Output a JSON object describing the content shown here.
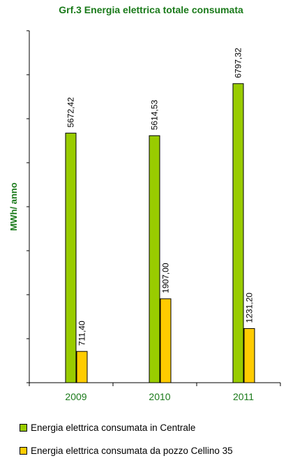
{
  "chart_data": {
    "type": "bar",
    "title": "Grf.3 Energia elettrica totale consumata",
    "ylabel": "MWh/ anno",
    "xlabel": "",
    "categories": [
      "2009",
      "2010",
      "2011"
    ],
    "ylim": [
      0,
      8000
    ],
    "y_ticks_labeled": false,
    "grid": false,
    "legend_position": "bottom",
    "series": [
      {
        "name": "Energia elettrica consumata in Centrale",
        "values": [
          5672.42,
          5614.53,
          6797.32
        ],
        "labels": [
          "5672,42",
          "5614,53",
          "6797,32"
        ],
        "color": "#99cc00"
      },
      {
        "name": "Energia elettrica consumata da pozzo Cellino 35",
        "values": [
          711.4,
          1907.0,
          1231.2
        ],
        "labels": [
          "711,40",
          "1907,00",
          "1231,20"
        ],
        "color": "#ffcc00"
      }
    ]
  }
}
